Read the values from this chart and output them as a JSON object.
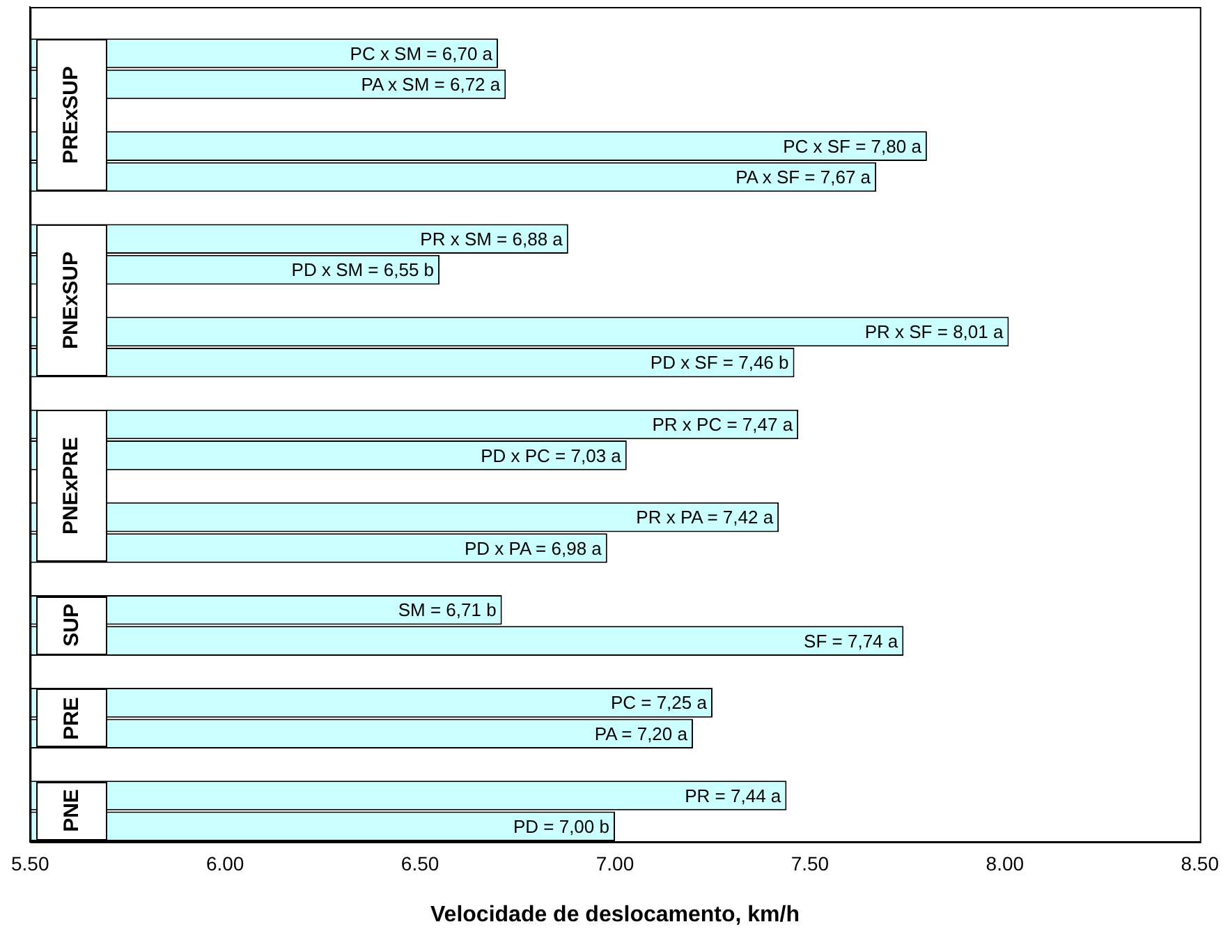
{
  "chart_data": {
    "type": "bar",
    "orientation": "horizontal",
    "xlabel": "Velocidade de deslocamento, km/h",
    "categories": [
      null,
      null,
      null,
      null,
      null,
      null,
      null,
      null,
      null,
      null,
      null,
      null,
      null,
      null,
      null,
      null,
      null,
      null,
      null,
      null,
      null,
      null,
      null,
      null,
      null,
      null,
      null
    ],
    "values": [
      null,
      6.7,
      6.72,
      null,
      7.8,
      7.67,
      null,
      6.88,
      6.55,
      null,
      8.01,
      7.46,
      null,
      7.47,
      7.03,
      null,
      7.42,
      6.98,
      null,
      6.71,
      7.74,
      null,
      7.25,
      7.2,
      null,
      7.44,
      7.0
    ],
    "value_labels": [
      null,
      "PC x SM = 6,70 a",
      "PA x SM = 6,72 a",
      null,
      "PC x SF = 7,80 a",
      "PA x SF = 7,67 a",
      null,
      "PR x SM = 6,88 a",
      "PD x SM = 6,55 b",
      null,
      "PR x SF = 8,01 a",
      "PD x SF = 7,46 b",
      null,
      "PR x PC = 7,47 a",
      "PD x PC = 7,03 a",
      null,
      "PR x PA = 7,42 a",
      "PD x PA = 6,98 a",
      null,
      "SM = 6,71 b",
      "SF = 7,74 a",
      null,
      "PC = 7,25 a",
      "PA = 7,20 a",
      null,
      "PR = 7,44 a",
      "PD = 7,00 b"
    ],
    "color": "#ccffff",
    "xlim": [
      5.5,
      8.5
    ],
    "xticks": [
      {
        "value": 5.5,
        "label": "5.50"
      },
      {
        "value": 6,
        "label": "6.00"
      },
      {
        "value": 6.5,
        "label": "6.50"
      },
      {
        "value": 7,
        "label": "7.00"
      },
      {
        "value": 7.5,
        "label": "7.50"
      },
      {
        "value": 8,
        "label": "8.00"
      },
      {
        "value": 8.5,
        "label": "8.50"
      }
    ],
    "annotations": [
      "PRExSUP",
      "PNExSUP",
      "PNExPRE",
      "SUP",
      "PRE",
      "PNE"
    ],
    "grid": false,
    "legend": false
  }
}
